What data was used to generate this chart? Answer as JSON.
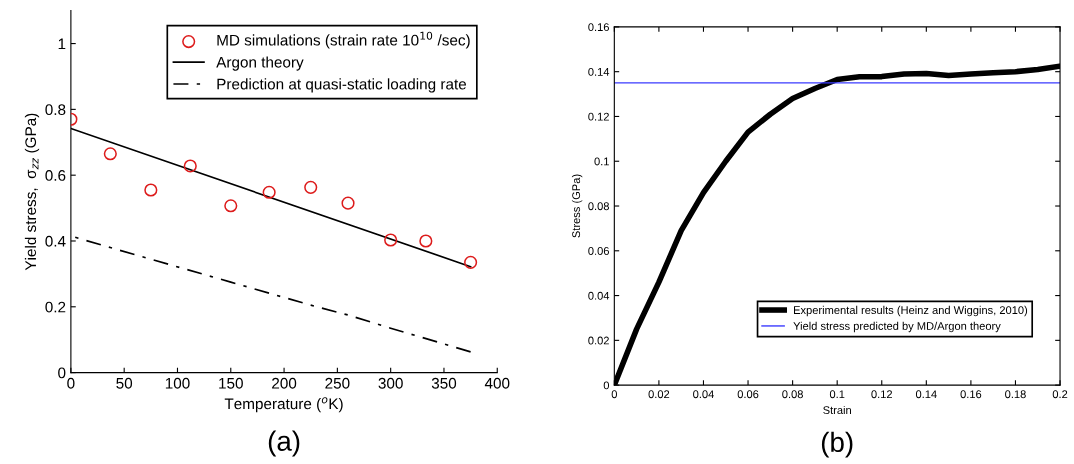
{
  "chart_data": [
    {
      "type": "scatter",
      "xlabel": "Temperature ($^{o}$K)",
      "ylabel": "Yield stress,  σ$_{zz}$ (GPa)",
      "xlim": [
        0,
        400
      ],
      "ylim": [
        0,
        1.1
      ],
      "xticks": [
        0,
        50,
        100,
        150,
        200,
        250,
        300,
        350,
        400
      ],
      "yticks": [
        0,
        0.2,
        0.4,
        0.6,
        0.8,
        1
      ],
      "grid": false,
      "legend": "top right",
      "annotations": [
        "(a)"
      ],
      "series": [
        {
          "name": "MD simulations (strain rate 10$^{10}$ /sec)",
          "marker": "circle",
          "color": "#dd1c1c",
          "x": [
            0,
            37,
            75,
            112,
            150,
            186,
            225,
            260,
            300,
            333,
            375
          ],
          "values": [
            0.77,
            0.665,
            0.555,
            0.628,
            0.507,
            0.548,
            0.563,
            0.515,
            0.403,
            0.4,
            0.335
          ]
        },
        {
          "name": "Argon theory",
          "type": "line",
          "line_style": "solid",
          "color": "#000000",
          "x": [
            0,
            375
          ],
          "values": [
            0.742,
            0.322
          ]
        },
        {
          "name": "Prediction at quasi-static loading rate",
          "type": "line",
          "line_style": "dashdot",
          "color": "#000000",
          "x": [
            0,
            37,
            150,
            225,
            260,
            300,
            375
          ],
          "values": [
            0.415,
            0.38,
            0.275,
            0.205,
            0.175,
            0.135,
            0.063
          ]
        }
      ]
    },
    {
      "type": "line",
      "xlabel": "Strain",
      "ylabel": "Stress (GPa)",
      "xlim": [
        0,
        0.2
      ],
      "ylim": [
        0,
        0.16
      ],
      "xticks": [
        0,
        0.02,
        0.04,
        0.06,
        0.08,
        0.1,
        0.12,
        0.14,
        0.16,
        0.18,
        0.2
      ],
      "yticks": [
        0,
        0.02,
        0.04,
        0.06,
        0.08,
        0.1,
        0.12,
        0.14,
        0.16
      ],
      "grid": false,
      "legend": "bottom right",
      "annotations": [
        "(b)"
      ],
      "series": [
        {
          "name": "Experimental results (Heinz and Wiggins, 2010)",
          "line_style": "solid",
          "color": "#000000",
          "x": [
            0,
            0.01,
            0.02,
            0.03,
            0.04,
            0.05,
            0.06,
            0.07,
            0.08,
            0.09,
            0.1,
            0.11,
            0.12,
            0.13,
            0.14,
            0.15,
            0.16,
            0.17,
            0.18,
            0.19,
            0.2
          ],
          "values": [
            0,
            0.025,
            0.046,
            0.069,
            0.086,
            0.1,
            0.113,
            0.121,
            0.128,
            0.1325,
            0.1365,
            0.1377,
            0.1378,
            0.139,
            0.1392,
            0.1383,
            0.139,
            0.1395,
            0.14,
            0.141,
            0.1425
          ]
        },
        {
          "name": "Yield stress predicted by MD/Argon theory",
          "line_style": "solid",
          "color": "#3a3aff",
          "x": [
            0,
            0.2
          ],
          "values": [
            0.135,
            0.135
          ]
        }
      ]
    }
  ]
}
